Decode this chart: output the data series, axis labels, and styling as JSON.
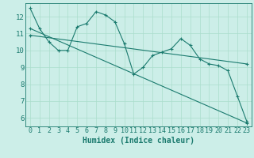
{
  "xlabel": "Humidex (Indice chaleur)",
  "bg_color": "#cceee8",
  "line_color": "#1a7a6e",
  "grid_color": "#aaddcc",
  "xlim": [
    -0.5,
    23.5
  ],
  "ylim": [
    5.5,
    12.8
  ],
  "yticks": [
    6,
    7,
    8,
    9,
    10,
    11,
    12
  ],
  "xticks": [
    0,
    1,
    2,
    3,
    4,
    5,
    6,
    7,
    8,
    9,
    10,
    11,
    12,
    13,
    14,
    15,
    16,
    17,
    18,
    19,
    20,
    21,
    22,
    23
  ],
  "line1_x": [
    0,
    1,
    2,
    3,
    4,
    5,
    6,
    7,
    8,
    9,
    10,
    11,
    12,
    13,
    14,
    15,
    16,
    17,
    18,
    19,
    20,
    21,
    22,
    23
  ],
  "line1_y": [
    12.5,
    11.3,
    10.5,
    10.0,
    10.0,
    11.4,
    11.6,
    12.3,
    12.1,
    11.7,
    10.4,
    8.6,
    9.0,
    9.7,
    9.9,
    10.1,
    10.7,
    10.3,
    9.5,
    9.2,
    9.1,
    8.8,
    7.3,
    5.8
  ],
  "line2_x": [
    0,
    23
  ],
  "line2_y": [
    11.3,
    5.7
  ],
  "line3_x": [
    0,
    23
  ],
  "line3_y": [
    10.9,
    9.2
  ],
  "font_size": 6.5
}
